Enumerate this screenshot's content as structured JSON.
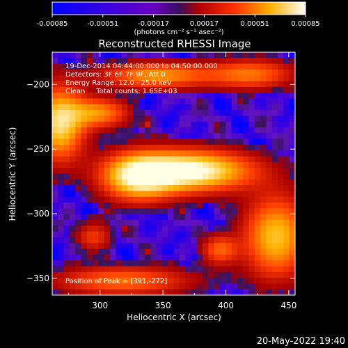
{
  "colorbar": {
    "tick_labels": [
      "-0.00085",
      "-0.00051",
      "-0.00017",
      "0.00017",
      "0.00051",
      "0.00085"
    ],
    "unit_label": "(photons cm⁻² s⁻¹ asec⁻²)",
    "range": [
      -0.00085,
      0.00085
    ],
    "colors": [
      "#0000ff",
      "#6a00d8",
      "#4a1a70",
      "#c00000",
      "#ff6a00",
      "#ffffff"
    ]
  },
  "chart_data": {
    "type": "heatmap",
    "title": "Reconstructed RHESSI Image",
    "xlabel": "Heliocentric X (arcsec)",
    "ylabel": "Heliocentric Y (arcsec)",
    "xlim": [
      262,
      455
    ],
    "ylim": [
      -363,
      -175
    ],
    "xticks": [
      300,
      350,
      400,
      450
    ],
    "yticks": [
      -200,
      -250,
      -300,
      -350
    ],
    "annotations": [
      "19-Dec-2014 04:44:00.000 to 04:50:00.000",
      "Detectors: 3F 6F 7F 9F, Att 0",
      "Energy Range: 12.0 - 25.0 keV",
      "Clean     Total counts: 1.65E+03"
    ],
    "peak_label": "Position of Peak = [391,-272]",
    "peak": [
      391,
      -272
    ],
    "sources": [
      {
        "x": 372,
        "y": -267,
        "sx": 34,
        "sy": 11,
        "amp": 1.0
      },
      {
        "x": 330,
        "y": -272,
        "sx": 20,
        "sy": 13,
        "amp": 0.75
      },
      {
        "x": 268,
        "y": -230,
        "sx": 14,
        "sy": 20,
        "amp": 0.82
      },
      {
        "x": 300,
        "y": -222,
        "sx": 16,
        "sy": 8,
        "amp": 0.55
      },
      {
        "x": 345,
        "y": -193,
        "sx": 30,
        "sy": 7,
        "amp": 0.6
      },
      {
        "x": 420,
        "y": -192,
        "sx": 24,
        "sy": 8,
        "amp": 0.5
      },
      {
        "x": 440,
        "y": -318,
        "sx": 18,
        "sy": 22,
        "amp": 0.72
      },
      {
        "x": 395,
        "y": -328,
        "sx": 10,
        "sy": 8,
        "amp": 0.45
      },
      {
        "x": 318,
        "y": -352,
        "sx": 38,
        "sy": 8,
        "amp": 0.5
      },
      {
        "x": 295,
        "y": -318,
        "sx": 10,
        "sy": 8,
        "amp": 0.35
      }
    ]
  },
  "footer": {
    "timestamp": "20-May-2022 19:40"
  }
}
